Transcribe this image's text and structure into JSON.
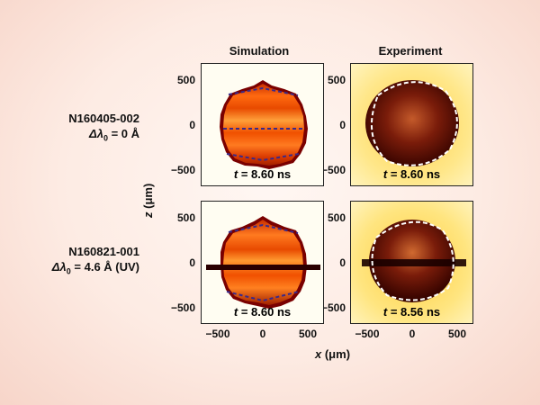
{
  "columns": {
    "simulation": "Simulation",
    "experiment": "Experiment"
  },
  "rows": [
    {
      "shot": "N160405-002",
      "delta_prefix": "Δλ",
      "delta_sub": "0",
      "delta_value": " = 0 Å"
    },
    {
      "shot": "N160821-001",
      "delta_prefix": "Δλ",
      "delta_sub": "0",
      "delta_value": " = 4.6 Å (UV)"
    }
  ],
  "panels": {
    "sim_top": {
      "t_var": "t",
      "t_value": " = 8.60 ns"
    },
    "exp_top": {
      "t_var": "t",
      "t_value": " = 8.60 ns"
    },
    "sim_bottom": {
      "t_var": "t",
      "t_value": " = 8.60 ns"
    },
    "exp_bottom": {
      "t_var": "t",
      "t_value": " = 8.56 ns"
    }
  },
  "axes": {
    "y_ticks": [
      "500",
      "0",
      "−500"
    ],
    "x_ticks": [
      "−500",
      "0",
      "500"
    ],
    "z_label_var": "z",
    "z_label_unit": " (μm)",
    "x_label_var": "x",
    "x_label_unit": " (μm)"
  }
}
